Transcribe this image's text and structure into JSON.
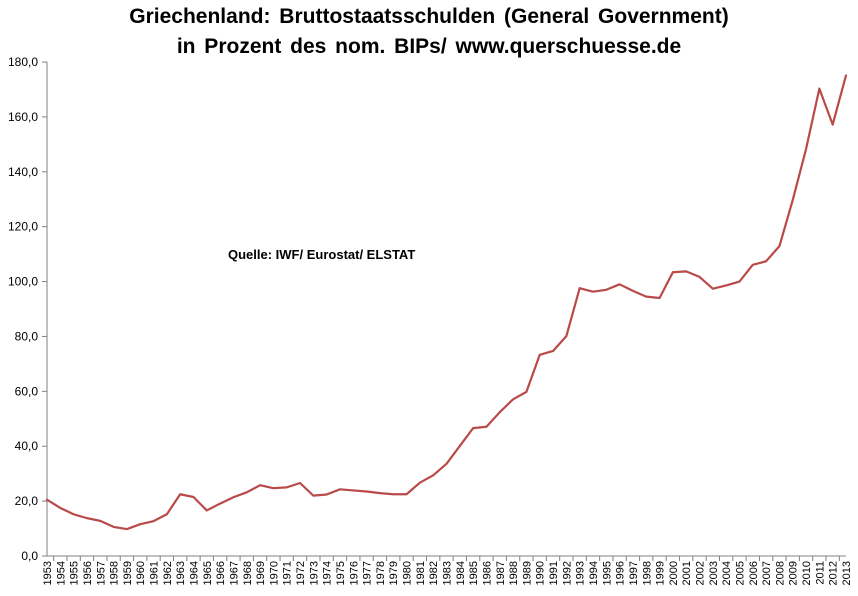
{
  "chart_data": {
    "type": "line",
    "title": "Griechenland: Bruttostaatsschulden  (General Government)",
    "subtitle": "in Prozent  des  nom.  BIPs/  www.querschuesse.de",
    "annotation": "Quelle: IWF/ Eurostat/ ELSTAT",
    "xlabel": "",
    "ylabel": "",
    "ylim": [
      0,
      180
    ],
    "y_ticks": [
      "0,0",
      "20,0",
      "40,0",
      "60,0",
      "80,0",
      "100,0",
      "120,0",
      "140,0",
      "160,0",
      "180,0"
    ],
    "grid": false,
    "legend": "none",
    "line_color": "#b94a48",
    "categories": [
      "1953",
      "1954",
      "1955",
      "1956",
      "1957",
      "1958",
      "1959",
      "1960",
      "1961",
      "1962",
      "1963",
      "1964",
      "1965",
      "1966",
      "1967",
      "1968",
      "1969",
      "1970",
      "1971",
      "1972",
      "1973",
      "1974",
      "1975",
      "1976",
      "1977",
      "1978",
      "1979",
      "1980",
      "1981",
      "1982",
      "1983",
      "1984",
      "1985",
      "1986",
      "1987",
      "1988",
      "1989",
      "1990",
      "1991",
      "1992",
      "1993",
      "1994",
      "1995",
      "1996",
      "1997",
      "1998",
      "1999",
      "2000",
      "2001",
      "2002",
      "2003",
      "2004",
      "2005",
      "2006",
      "2007",
      "2008",
      "2009",
      "2010",
      "2011",
      "2012",
      "2013"
    ],
    "series": [
      {
        "values": [
          20.5,
          17.5,
          15.2,
          13.8,
          12.8,
          10.6,
          9.8,
          11.6,
          12.7,
          15.2,
          22.5,
          21.5,
          16.6,
          19.1,
          21.4,
          23.2,
          25.8,
          24.7,
          25.0,
          26.6,
          22.0,
          22.4,
          24.3,
          23.9,
          23.5,
          22.9,
          22.5,
          22.5,
          26.7,
          29.4,
          33.6,
          40.1,
          46.6,
          47.1,
          52.4,
          57.1,
          59.8,
          73.3,
          74.7,
          80.1,
          97.6,
          96.3,
          97.0,
          99.0,
          96.6,
          94.5,
          94.0,
          103.4,
          103.7,
          101.7,
          97.4,
          98.6,
          100.0,
          106.1,
          107.4,
          112.9,
          129.7,
          148.3,
          170.3,
          157.2,
          175.1
        ]
      }
    ]
  }
}
